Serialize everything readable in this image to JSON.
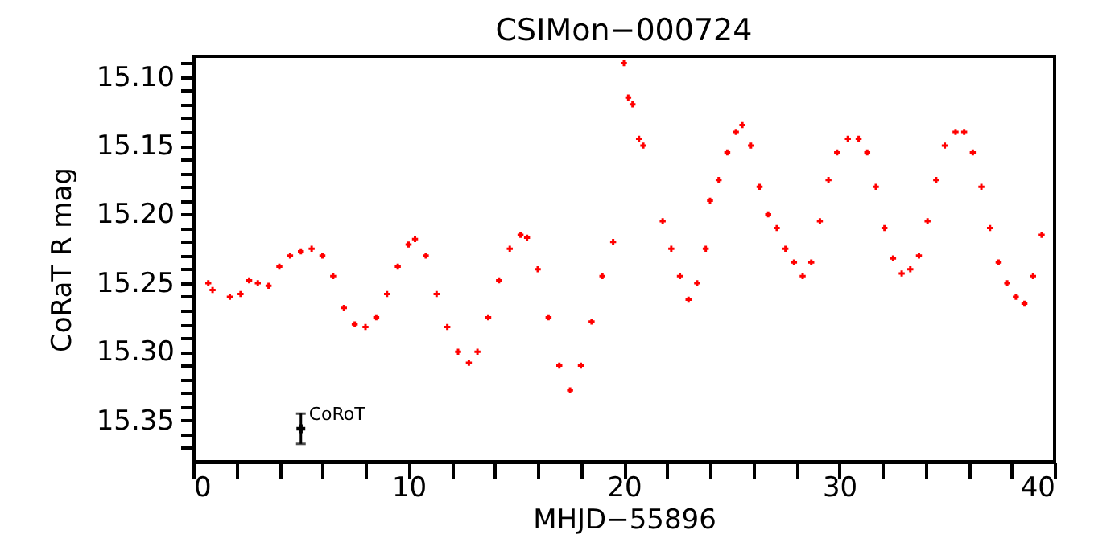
{
  "chart_data": {
    "type": "scatter",
    "title": "CSIMon−000724",
    "xlabel": "MHJD−55896",
    "ylabel": "CoRaT R mag",
    "xlim": [
      0,
      40
    ],
    "ylim": [
      15.38,
      15.085
    ],
    "xticks": [
      0,
      {
        "value": 2,
        "label": null
      },
      {
        "value": 4,
        "label": null
      },
      {
        "value": 6,
        "label": null
      },
      {
        "value": 8,
        "label": null
      },
      10,
      {
        "value": 12,
        "label": null
      },
      {
        "value": 14,
        "label": null
      },
      {
        "value": 16,
        "label": null
      },
      {
        "value": 18,
        "label": null
      },
      20,
      {
        "value": 22,
        "label": null
      },
      {
        "value": 24,
        "label": null
      },
      {
        "value": 26,
        "label": null
      },
      {
        "value": 28,
        "label": null
      },
      30,
      {
        "value": 32,
        "label": null
      },
      {
        "value": 34,
        "label": null
      },
      {
        "value": 36,
        "label": null
      },
      {
        "value": 38,
        "label": null
      },
      40
    ],
    "yticks": [
      {
        "value": 15.09,
        "label": null
      },
      {
        "value": 15.1,
        "label": "15.10"
      },
      {
        "value": 15.11,
        "label": null
      },
      {
        "value": 15.12,
        "label": null
      },
      {
        "value": 15.13,
        "label": null
      },
      {
        "value": 15.14,
        "label": null
      },
      15.15,
      {
        "value": 15.16,
        "label": null
      },
      {
        "value": 15.17,
        "label": null
      },
      {
        "value": 15.18,
        "label": null
      },
      {
        "value": 15.19,
        "label": null
      },
      {
        "value": 15.2,
        "label": "15.20"
      },
      {
        "value": 15.21,
        "label": null
      },
      {
        "value": 15.22,
        "label": null
      },
      {
        "value": 15.23,
        "label": null
      },
      {
        "value": 15.24,
        "label": null
      },
      15.25,
      {
        "value": 15.26,
        "label": null
      },
      {
        "value": 15.27,
        "label": null
      },
      {
        "value": 15.28,
        "label": null
      },
      {
        "value": 15.29,
        "label": null
      },
      {
        "value": 15.3,
        "label": "15.30"
      },
      {
        "value": 15.31,
        "label": null
      },
      {
        "value": 15.32,
        "label": null
      },
      {
        "value": 15.33,
        "label": null
      },
      {
        "value": 15.34,
        "label": null
      },
      15.35,
      {
        "value": 15.36,
        "label": null
      },
      {
        "value": 15.37,
        "label": null
      }
    ],
    "grid": false,
    "marker": "cross",
    "series": [
      {
        "color": "#ff0000",
        "x": [
          0.7,
          0.9,
          1.7,
          2.2,
          2.6,
          3.0,
          3.5,
          4.0,
          4.5,
          5.0,
          5.5,
          6.0,
          6.5,
          7.0,
          7.5,
          8.0,
          8.5,
          9.0,
          9.5,
          10.0,
          10.3,
          10.8,
          11.3,
          11.8,
          12.3,
          12.8,
          13.2,
          13.7,
          14.2,
          14.7,
          15.2,
          15.5,
          16.0,
          16.5,
          17.0,
          17.5,
          18.0,
          18.5,
          19.0,
          19.5,
          20.0,
          20.2,
          20.4,
          20.7,
          20.9,
          21.8,
          22.2,
          22.6,
          23.0,
          23.4,
          23.8,
          24.0,
          24.4,
          24.8,
          25.2,
          25.5,
          25.9,
          26.3,
          26.7,
          27.1,
          27.5,
          27.9,
          28.3,
          28.7,
          29.1,
          29.5,
          29.9,
          30.4,
          30.9,
          31.3,
          31.7,
          32.1,
          32.5,
          32.9,
          33.3,
          33.7,
          34.1,
          34.5,
          34.9,
          35.4,
          35.8,
          36.2,
          36.6,
          37.0,
          37.4,
          37.8,
          38.2,
          38.6,
          39.0,
          39.4
        ],
        "values": [
          15.25,
          15.255,
          15.26,
          15.258,
          15.248,
          15.25,
          15.252,
          15.238,
          15.23,
          15.227,
          15.225,
          15.23,
          15.245,
          15.268,
          15.28,
          15.282,
          15.275,
          15.258,
          15.238,
          15.222,
          15.218,
          15.23,
          15.258,
          15.282,
          15.3,
          15.308,
          15.3,
          15.275,
          15.248,
          15.225,
          15.215,
          15.217,
          15.24,
          15.275,
          15.31,
          15.328,
          15.31,
          15.278,
          15.245,
          15.22,
          15.09,
          15.115,
          15.12,
          15.145,
          15.15,
          15.205,
          15.225,
          15.245,
          15.262,
          15.25,
          15.225,
          15.19,
          15.175,
          15.155,
          15.14,
          15.135,
          15.15,
          15.18,
          15.2,
          15.21,
          15.225,
          15.235,
          15.245,
          15.235,
          15.205,
          15.175,
          15.155,
          15.145,
          15.145,
          15.155,
          15.18,
          15.21,
          15.232,
          15.243,
          15.24,
          15.23,
          15.205,
          15.175,
          15.15,
          15.14,
          15.14,
          15.155,
          15.18,
          15.21,
          15.235,
          15.25,
          15.26,
          15.265,
          15.245,
          15.215
        ]
      },
      {
        "color": "#000000",
        "x": [
          5
        ],
        "values": [
          15.356
        ],
        "errors": [
          0.011
        ]
      }
    ],
    "annotations": [
      {
        "text": "CoRoT",
        "x": 5,
        "y": 15.346
      }
    ]
  }
}
